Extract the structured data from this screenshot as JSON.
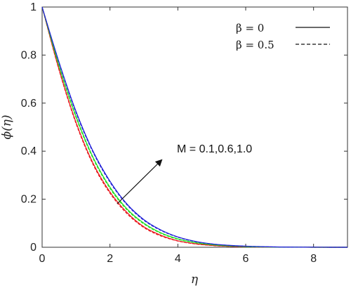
{
  "chart_data": {
    "type": "line",
    "title": "",
    "xlabel": "η",
    "ylabel": "ϕ(η)",
    "xlim": [
      0,
      9
    ],
    "ylim": [
      0,
      1
    ],
    "x_ticks": [
      0,
      2,
      4,
      6,
      8
    ],
    "y_ticks": [
      0,
      0.2,
      0.4,
      0.6,
      0.8,
      1
    ],
    "grid": false,
    "legend": {
      "placement": "top-right",
      "entries": [
        {
          "label": "β = 0",
          "style": "solid"
        },
        {
          "label": "β = 0.5",
          "style": "dashed"
        }
      ]
    },
    "annotation": {
      "text": "M = 0.1,0.6,1.0",
      "arrow": "increasing M"
    },
    "x": [
      0,
      0.5,
      1,
      1.5,
      2,
      2.5,
      3,
      3.5,
      4,
      4.5,
      5,
      5.5,
      6,
      6.5,
      7,
      7.5,
      8,
      8.5,
      9
    ],
    "series": [
      {
        "color": "#e8161b",
        "style": "solid",
        "values": [
          1,
          0.74,
          0.52,
          0.35,
          0.23,
          0.145,
          0.085,
          0.05,
          0.027,
          0.015,
          0.008,
          0.004,
          0.002,
          0.001,
          0.0005,
          0.0002,
          0.0001,
          0,
          0
        ]
      },
      {
        "color": "#e8161b",
        "style": "dashed",
        "values": [
          1,
          0.737,
          0.515,
          0.345,
          0.225,
          0.14,
          0.082,
          0.047,
          0.026,
          0.014,
          0.0075,
          0.0038,
          0.0018,
          0.0009,
          0.0004,
          0.0002,
          0.0001,
          0,
          0
        ]
      },
      {
        "color": "#22dd22",
        "style": "solid",
        "values": [
          1,
          0.755,
          0.545,
          0.375,
          0.25,
          0.16,
          0.1,
          0.06,
          0.035,
          0.02,
          0.011,
          0.006,
          0.003,
          0.0015,
          0.0007,
          0.0003,
          0.0001,
          0,
          0
        ]
      },
      {
        "color": "#22dd22",
        "style": "dashed",
        "values": [
          1,
          0.752,
          0.54,
          0.37,
          0.245,
          0.156,
          0.097,
          0.058,
          0.033,
          0.019,
          0.0105,
          0.0056,
          0.0028,
          0.0014,
          0.0006,
          0.0003,
          0.0001,
          0,
          0
        ]
      },
      {
        "color": "#1f1fd6",
        "style": "solid",
        "values": [
          1,
          0.77,
          0.565,
          0.4,
          0.275,
          0.18,
          0.115,
          0.072,
          0.043,
          0.025,
          0.014,
          0.008,
          0.0045,
          0.0025,
          0.0012,
          0.0006,
          0.0003,
          0.0001,
          0
        ]
      },
      {
        "color": "#1f1fd6",
        "style": "dashed",
        "values": [
          1,
          0.767,
          0.56,
          0.396,
          0.271,
          0.177,
          0.112,
          0.07,
          0.042,
          0.024,
          0.0135,
          0.0077,
          0.0043,
          0.0023,
          0.0011,
          0.0005,
          0.0002,
          0.0001,
          0
        ]
      }
    ]
  }
}
